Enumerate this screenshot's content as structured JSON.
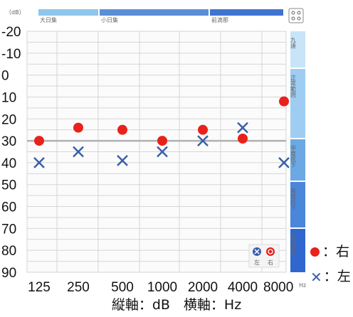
{
  "chart_data": {
    "type": "scatter",
    "title": "",
    "x_categories": [
      "125",
      "250",
      "500",
      "1000",
      "2000",
      "4000",
      "8000"
    ],
    "y_ticks": [
      "-20",
      "-10",
      "0",
      "10",
      "20",
      "30",
      "40",
      "50",
      "60",
      "70",
      "80",
      "90"
    ],
    "ylim": [
      -20,
      90
    ],
    "y_reversed": true,
    "grid": true,
    "reference_line_db": 30,
    "series": [
      {
        "name": "右",
        "marker": "filled-circle",
        "color": "#e8221b",
        "values": [
          30,
          24,
          25,
          30,
          25,
          29,
          12
        ]
      },
      {
        "name": "左",
        "marker": "x",
        "color": "#3a5fa8",
        "values": [
          40,
          35,
          39,
          35,
          30,
          24,
          40
        ]
      }
    ],
    "top_band": {
      "unit": "（dB）",
      "segments": [
        {
          "label": "大日集",
          "color": "#8ec6ec"
        },
        {
          "label": "小日集",
          "color": "#5a8fd8"
        },
        {
          "label": "前滴那",
          "color": "#3f74d0"
        }
      ]
    },
    "right_band": [
      {
        "label": "九遠",
        "color": "#c8e4f8"
      },
      {
        "label": "正常範囲",
        "color": "#9fcdf2"
      },
      {
        "label": "中度低下",
        "color": "#6ba8e4"
      },
      {
        "label": "高度低下",
        "color": "#4a86da"
      },
      {
        "label": "重度低下",
        "color": "#2f67cf"
      }
    ],
    "corner_label": "Hz",
    "inner_legend": {
      "left": "左",
      "right": "右"
    },
    "caption": "縦軸：dB　横軸：Hz",
    "colors": {
      "right": "#e8221b",
      "left": "#3a5fa8",
      "grid": "#d6d6d6",
      "ref": "#b0b0b0"
    }
  },
  "legend": {
    "right_label": "：右",
    "left_label": "：左"
  }
}
